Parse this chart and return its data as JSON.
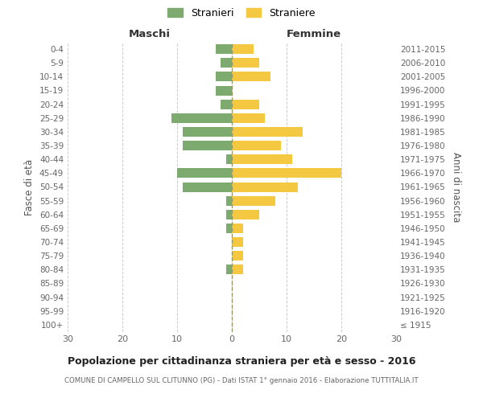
{
  "age_groups": [
    "100+",
    "95-99",
    "90-94",
    "85-89",
    "80-84",
    "75-79",
    "70-74",
    "65-69",
    "60-64",
    "55-59",
    "50-54",
    "45-49",
    "40-44",
    "35-39",
    "30-34",
    "25-29",
    "20-24",
    "15-19",
    "10-14",
    "5-9",
    "0-4"
  ],
  "birth_years": [
    "≤ 1915",
    "1916-1920",
    "1921-1925",
    "1926-1930",
    "1931-1935",
    "1936-1940",
    "1941-1945",
    "1946-1950",
    "1951-1955",
    "1956-1960",
    "1961-1965",
    "1966-1970",
    "1971-1975",
    "1976-1980",
    "1981-1985",
    "1986-1990",
    "1991-1995",
    "1996-2000",
    "2001-2005",
    "2006-2010",
    "2011-2015"
  ],
  "males": [
    0,
    0,
    0,
    0,
    1,
    0,
    0,
    1,
    1,
    1,
    9,
    10,
    1,
    9,
    9,
    11,
    2,
    3,
    3,
    2,
    3
  ],
  "females": [
    0,
    0,
    0,
    0,
    2,
    2,
    2,
    2,
    5,
    8,
    12,
    20,
    11,
    9,
    13,
    6,
    5,
    0,
    7,
    5,
    4
  ],
  "male_color": "#7daa6f",
  "female_color": "#f5c842",
  "dashed_color": "#999966",
  "grid_color": "#cccccc",
  "title": "Popolazione per cittadinanza straniera per età e sesso - 2016",
  "subtitle": "COMUNE DI CAMPELLO SUL CLITUNNO (PG) - Dati ISTAT 1° gennaio 2016 - Elaborazione TUTTITALIA.IT",
  "xlabel_left": "Maschi",
  "xlabel_right": "Femmine",
  "ylabel_left": "Fasce di età",
  "ylabel_right": "Anni di nascita",
  "legend_male": "Stranieri",
  "legend_female": "Straniere",
  "xlim": 30,
  "background_color": "#ffffff"
}
